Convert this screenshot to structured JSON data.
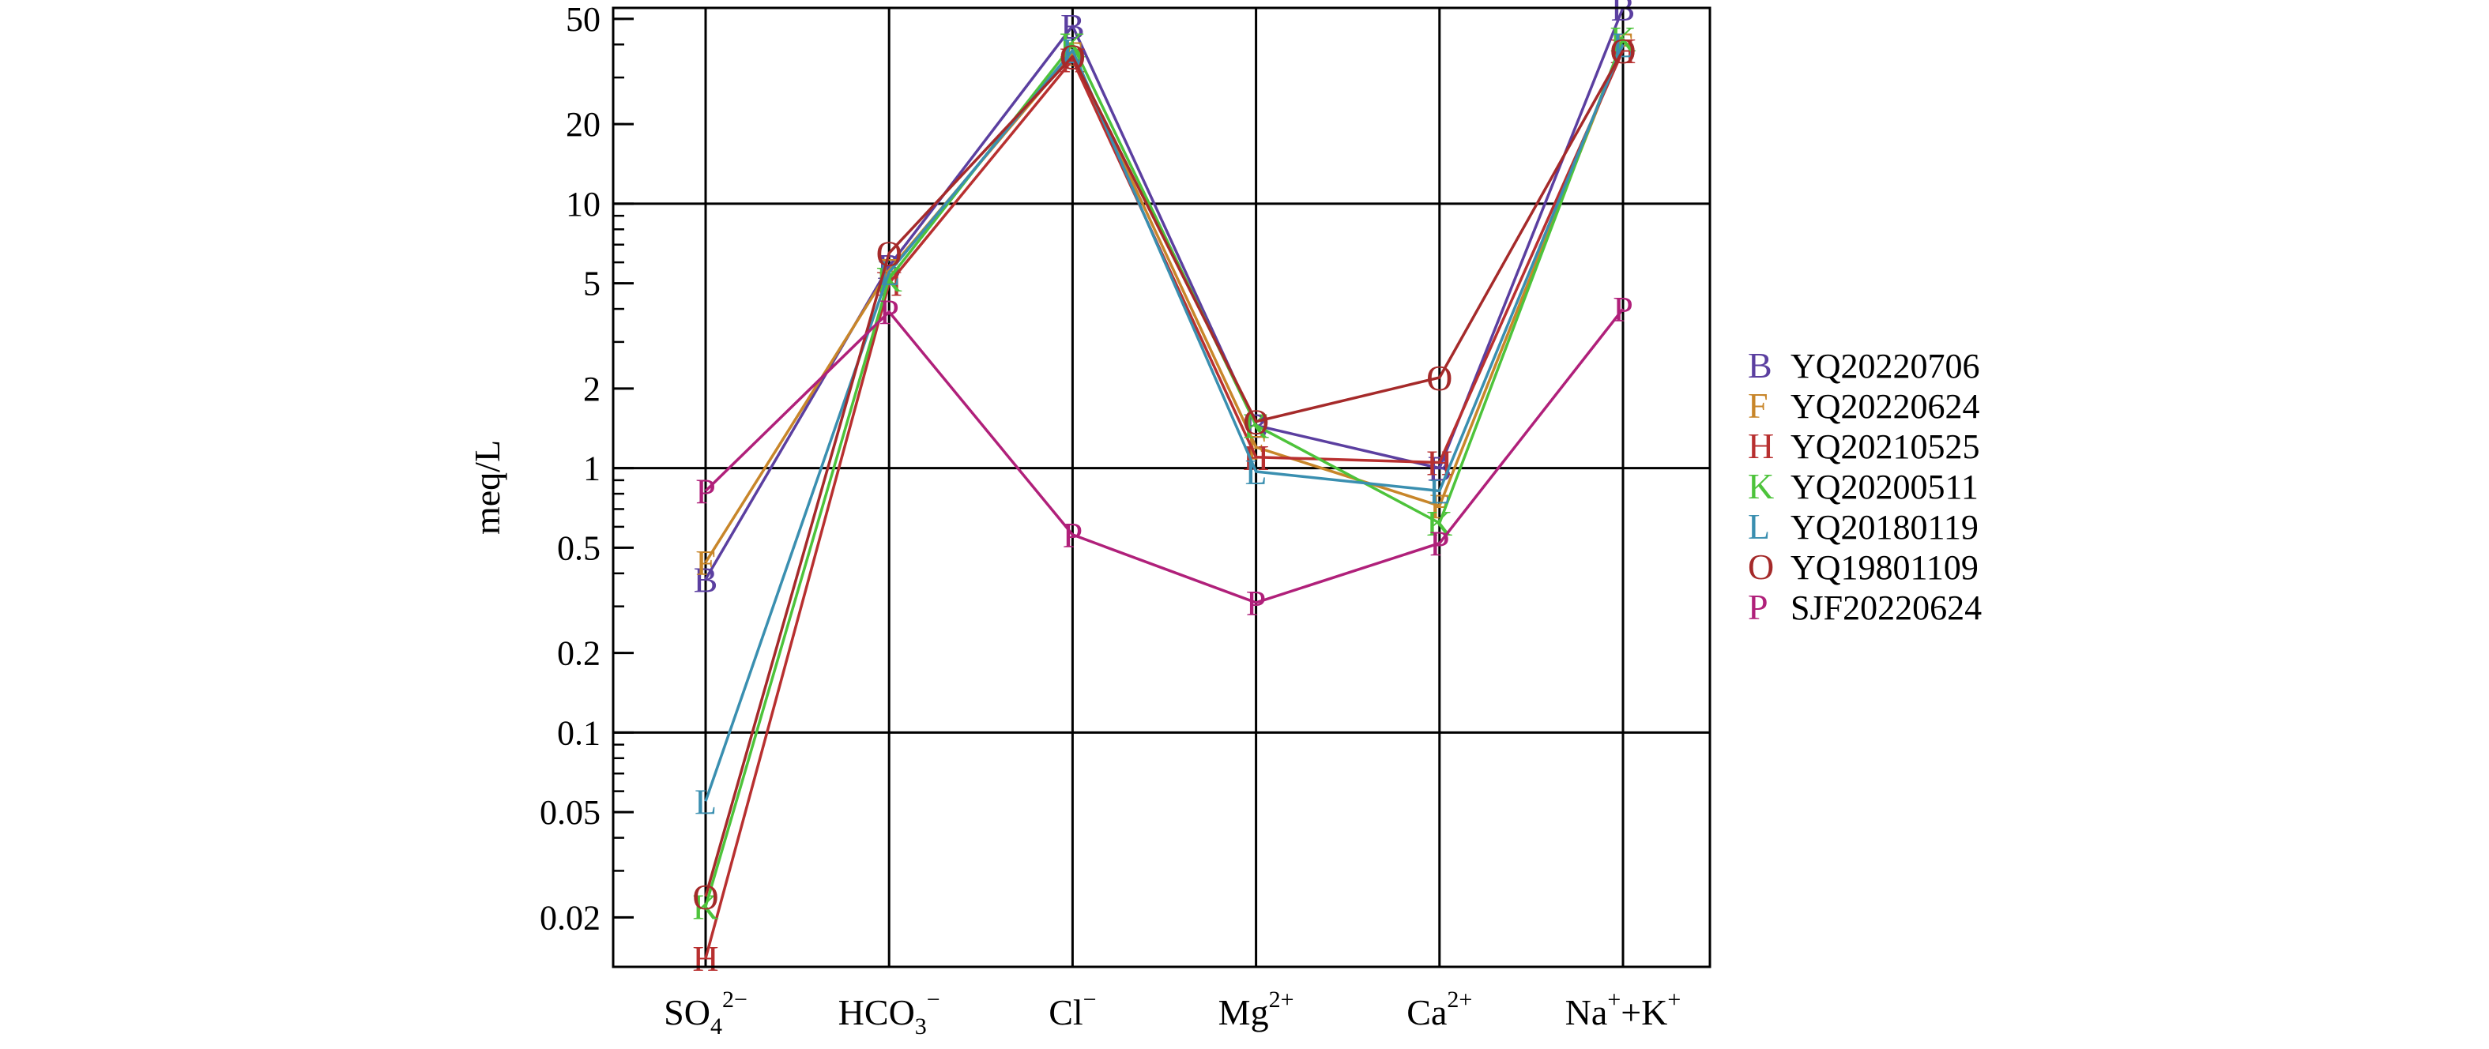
{
  "chart_data": {
    "type": "line",
    "ylabel": "meq/L",
    "yscale": "log",
    "ylim": [
      0.013,
      55
    ],
    "yticks": [
      {
        "v": 50,
        "label": "50"
      },
      {
        "v": 20,
        "label": "20"
      },
      {
        "v": 10,
        "label": "10"
      },
      {
        "v": 5,
        "label": "5"
      },
      {
        "v": 2,
        "label": "2"
      },
      {
        "v": 1,
        "label": "1"
      },
      {
        "v": 0.5,
        "label": "0.5"
      },
      {
        "v": 0.2,
        "label": "0.2"
      },
      {
        "v": 0.1,
        "label": "0.1"
      },
      {
        "v": 0.05,
        "label": "0.05"
      },
      {
        "v": 0.02,
        "label": "0.02"
      }
    ],
    "categories": [
      {
        "base": "SO",
        "sub": "4",
        "sup": "2−",
        "tail": ""
      },
      {
        "base": "HCO",
        "sub": "3",
        "sup": "−",
        "tail": ""
      },
      {
        "base": "Cl",
        "sub": "",
        "sup": "−",
        "tail": ""
      },
      {
        "base": "Mg",
        "sub": "",
        "sup": "2+",
        "tail": ""
      },
      {
        "base": "Ca",
        "sub": "",
        "sup": "2+",
        "tail": ""
      },
      {
        "base": "Na",
        "sub": "",
        "sup": "+",
        "tail": "+K",
        "sup2": "+"
      }
    ],
    "grid": true,
    "legend_position": "right",
    "series": [
      {
        "letter": "B",
        "name": "YQ20220706",
        "color": "#5b3fa0",
        "values": [
          0.38,
          5.8,
          47,
          1.45,
          1.0,
          55
        ]
      },
      {
        "letter": "F",
        "name": "YQ20220624",
        "color": "#c8862a",
        "values": [
          0.44,
          5.6,
          37,
          1.2,
          0.72,
          40
        ]
      },
      {
        "letter": "H",
        "name": "YQ20210525",
        "color": "#b83030",
        "values": [
          0.014,
          5.0,
          35,
          1.1,
          1.05,
          38
        ]
      },
      {
        "letter": "K",
        "name": "YQ20200511",
        "color": "#4dc33b",
        "values": [
          0.022,
          5.2,
          40,
          1.45,
          0.62,
          42
        ]
      },
      {
        "letter": "L",
        "name": "YQ20180119",
        "color": "#3a8fb0",
        "values": [
          0.055,
          5.5,
          38,
          0.97,
          0.82,
          40
        ]
      },
      {
        "letter": "O",
        "name": "YQ19801109",
        "color": "#a52a2a",
        "values": [
          0.024,
          6.5,
          36,
          1.5,
          2.2,
          38
        ]
      },
      {
        "letter": "P",
        "name": "SJF20220624",
        "color": "#b0207a",
        "values": [
          0.82,
          3.9,
          0.56,
          0.31,
          0.52,
          4.0
        ]
      }
    ]
  }
}
